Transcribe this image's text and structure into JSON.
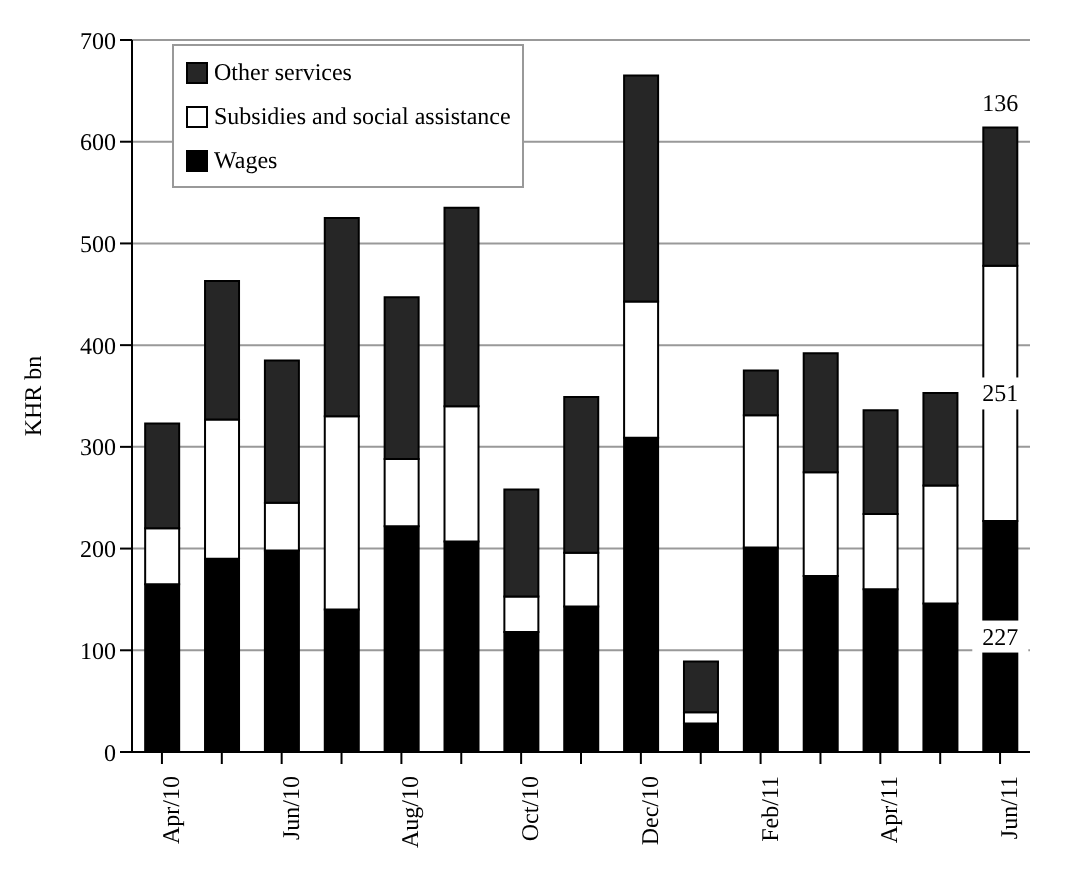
{
  "chart_data": {
    "type": "bar",
    "stacked": true,
    "ylabel": "KHR bn",
    "categories": [
      "Apr/10",
      null,
      "Jun/10",
      null,
      "Aug/10",
      null,
      "Oct/10",
      null,
      "Dec/10",
      null,
      "Feb/11",
      null,
      "Apr/11",
      null,
      "Jun/11"
    ],
    "series": [
      {
        "name": "Wages",
        "color": "#000000",
        "values": [
          165,
          190,
          198,
          140,
          222,
          207,
          118,
          143,
          309,
          28,
          201,
          173,
          160,
          146,
          227
        ],
        "value_labels": [
          null,
          null,
          null,
          null,
          null,
          null,
          null,
          null,
          null,
          null,
          null,
          null,
          null,
          null,
          "227"
        ]
      },
      {
        "name": "Subsidies and social assistance",
        "color": "#ffffff",
        "values": [
          55,
          137,
          47,
          190,
          66,
          133,
          35,
          53,
          134,
          11,
          130,
          102,
          74,
          116,
          251
        ],
        "value_labels": [
          null,
          null,
          null,
          null,
          null,
          null,
          null,
          null,
          null,
          null,
          null,
          null,
          null,
          null,
          "251"
        ]
      },
      {
        "name": "Other services",
        "color": "#262626",
        "values": [
          103,
          136,
          140,
          195,
          159,
          195,
          105,
          153,
          222,
          50,
          44,
          117,
          102,
          91,
          136
        ],
        "value_labels": [
          null,
          null,
          null,
          null,
          null,
          null,
          null,
          null,
          null,
          null,
          null,
          null,
          null,
          null,
          "136"
        ]
      }
    ],
    "ylim": [
      0,
      700
    ],
    "yticks": [
      0,
      100,
      200,
      300,
      400,
      500,
      600,
      700
    ],
    "grid": "y",
    "legend": "top left"
  }
}
